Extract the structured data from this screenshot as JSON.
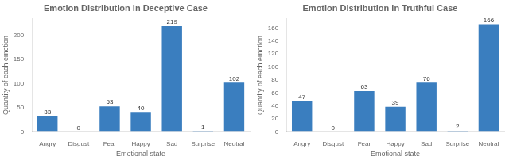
{
  "chart_data": [
    {
      "type": "bar",
      "title": "Emotion Distribution in Deceptive Case",
      "xlabel": "Emotional state",
      "ylabel": "Quantity of each emotion",
      "categories": [
        "Angry",
        "Disgust",
        "Fear",
        "Happy",
        "Sad",
        "Surprise",
        "Neutral"
      ],
      "values": [
        33,
        0,
        53,
        40,
        219,
        1,
        102
      ],
      "color": "#3a7ebf",
      "ylim": [
        0,
        235
      ],
      "yticks": [
        0,
        50,
        100,
        150,
        200
      ],
      "grid": false,
      "data_labels": true
    },
    {
      "type": "bar",
      "title": "Emotion Distribution in Truthful Case",
      "xlabel": "Emotional state",
      "ylabel": "Quantity of each emotion",
      "categories": [
        "Angry",
        "Disgust",
        "Fear",
        "Happy",
        "Sad",
        "Surprise",
        "Neutral"
      ],
      "values": [
        47,
        0,
        63,
        39,
        76,
        2,
        166
      ],
      "color": "#3a7ebf",
      "ylim": [
        0,
        175
      ],
      "yticks": [
        0,
        20,
        40,
        60,
        80,
        100,
        120,
        140,
        160
      ],
      "grid": false,
      "data_labels": true
    }
  ]
}
